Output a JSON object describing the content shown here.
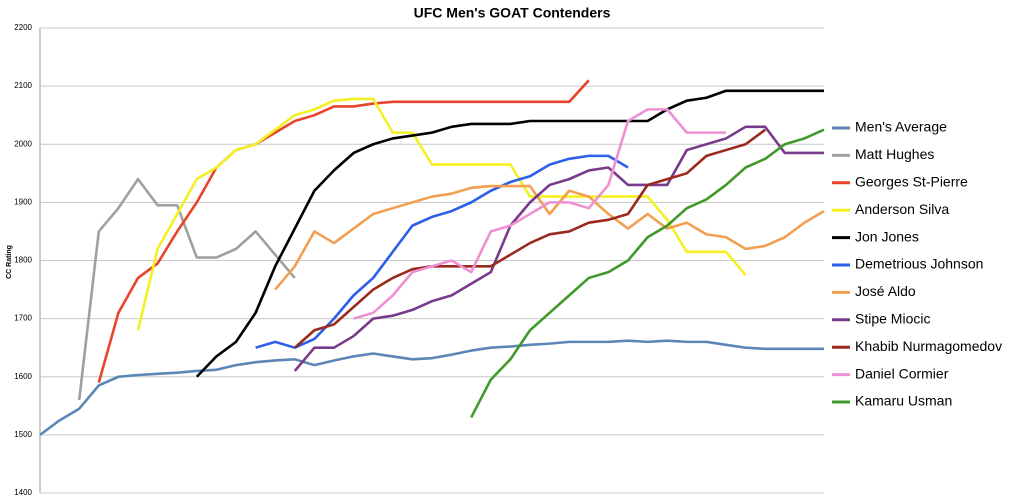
{
  "chart_data": {
    "type": "line",
    "title": "UFC Men's GOAT Contenders",
    "ylabel": "CC Rating",
    "categories": [
      null,
      null,
      null,
      null,
      null,
      null,
      null,
      null,
      null,
      null,
      null,
      null,
      null,
      null,
      null,
      null,
      null,
      null,
      null,
      null,
      null,
      null,
      null,
      null,
      null,
      null,
      null,
      null,
      null,
      null,
      null,
      null,
      null,
      null,
      null,
      null,
      null,
      null,
      null,
      null,
      null
    ],
    "ylim": [
      1400,
      2200
    ],
    "yticks": [
      1400,
      1500,
      1600,
      1700,
      1800,
      1900,
      2000,
      2100,
      2200
    ],
    "grid": true,
    "legend": "right",
    "series": [
      {
        "name": "Men's Average",
        "color": "#5b87b8",
        "values": [
          1500,
          1525,
          1545,
          1585,
          1600,
          1603,
          1605,
          1607,
          1610,
          1612,
          1620,
          1625,
          1628,
          1630,
          1620,
          1628,
          1635,
          1640,
          1635,
          1630,
          1632,
          1638,
          1645,
          1650,
          1652,
          1655,
          1657,
          1660,
          1660,
          1660,
          1662,
          1660,
          1662,
          1660,
          1660,
          1655,
          1650,
          1648,
          1648,
          1648,
          1648
        ]
      },
      {
        "name": "Matt Hughes",
        "color": "#a0a0a0",
        "values": [
          null,
          null,
          1560,
          1850,
          1890,
          1940,
          1895,
          1895,
          1805,
          1805,
          1820,
          1850,
          1810,
          1770,
          null,
          null,
          null,
          null,
          null,
          null,
          null,
          null,
          null,
          null,
          null,
          null,
          null,
          null,
          null,
          null,
          null,
          null,
          null,
          null,
          null,
          null,
          null,
          null,
          null,
          null,
          null
        ]
      },
      {
        "name": "Georges St-Pierre",
        "color": "#e8432b",
        "values": [
          null,
          null,
          null,
          1590,
          1710,
          1770,
          1795,
          1850,
          1900,
          1960,
          1990,
          2000,
          2020,
          2040,
          2050,
          2065,
          2065,
          2070,
          2073,
          2073,
          2073,
          2073,
          2073,
          2073,
          2073,
          2073,
          2073,
          2073,
          2110,
          null,
          null,
          null,
          null,
          null,
          null,
          null,
          null,
          null,
          null,
          null,
          null
        ]
      },
      {
        "name": "Anderson Silva",
        "color": "#f5f023",
        "values": [
          null,
          null,
          null,
          null,
          null,
          1680,
          1820,
          1880,
          1940,
          1960,
          1990,
          2000,
          2025,
          2050,
          2060,
          2075,
          2078,
          2078,
          2020,
          2020,
          1965,
          1965,
          1965,
          1965,
          1965,
          1910,
          1910,
          1910,
          1910,
          1910,
          1910,
          1910,
          1870,
          1815,
          1815,
          1815,
          1775,
          null,
          null,
          null,
          null
        ]
      },
      {
        "name": "Jon Jones",
        "color": "#000000",
        "values": [
          null,
          null,
          null,
          null,
          null,
          null,
          null,
          null,
          1600,
          1635,
          1660,
          1710,
          1790,
          1855,
          1920,
          1955,
          1985,
          2000,
          2010,
          2015,
          2020,
          2030,
          2035,
          2035,
          2035,
          2040,
          2040,
          2040,
          2040,
          2040,
          2040,
          2040,
          2060,
          2075,
          2080,
          2092,
          2092,
          2092,
          2092,
          2092,
          2092
        ]
      },
      {
        "name": "Demetrious Johnson",
        "color": "#2d5fe8",
        "values": [
          null,
          null,
          null,
          null,
          null,
          null,
          null,
          null,
          null,
          null,
          null,
          1650,
          1660,
          1650,
          1665,
          1700,
          1740,
          1770,
          1815,
          1860,
          1875,
          1885,
          1900,
          1920,
          1935,
          1945,
          1965,
          1975,
          1980,
          1980,
          1960,
          null,
          null,
          null,
          null,
          null,
          null,
          null,
          null,
          null,
          null
        ]
      },
      {
        "name": "José Aldo",
        "color": "#f0a050",
        "values": [
          null,
          null,
          null,
          null,
          null,
          null,
          null,
          null,
          null,
          null,
          null,
          null,
          1750,
          1790,
          1850,
          1830,
          1855,
          1880,
          1890,
          1900,
          1910,
          1915,
          1925,
          1928,
          1928,
          1928,
          1880,
          1920,
          1910,
          1880,
          1855,
          1880,
          1855,
          1865,
          1845,
          1840,
          1820,
          1825,
          1840,
          1865,
          1885
        ]
      },
      {
        "name": "Stipe Miocic",
        "color": "#7a3a8c",
        "values": [
          null,
          null,
          null,
          null,
          null,
          null,
          null,
          null,
          null,
          null,
          null,
          null,
          null,
          1610,
          1650,
          1650,
          1670,
          1700,
          1705,
          1715,
          1730,
          1740,
          1760,
          1780,
          1860,
          1900,
          1930,
          1940,
          1955,
          1960,
          1930,
          1930,
          1930,
          1990,
          2000,
          2010,
          2030,
          2030,
          1985,
          1985,
          1985
        ]
      },
      {
        "name": "Khabib Nurmagomedov",
        "color": "#9a2a1c",
        "values": [
          null,
          null,
          null,
          null,
          null,
          null,
          null,
          null,
          null,
          null,
          null,
          null,
          null,
          1650,
          1680,
          1690,
          1720,
          1750,
          1770,
          1785,
          1790,
          1790,
          1790,
          1790,
          1810,
          1830,
          1845,
          1850,
          1865,
          1870,
          1880,
          1930,
          1940,
          1950,
          1980,
          1990,
          2000,
          2025,
          null,
          null,
          null
        ]
      },
      {
        "name": "Daniel Cormier",
        "color": "#ee90d4",
        "values": [
          null,
          null,
          null,
          null,
          null,
          null,
          null,
          null,
          null,
          null,
          null,
          null,
          null,
          null,
          null,
          null,
          1700,
          1710,
          1740,
          1780,
          1790,
          1800,
          1780,
          1850,
          1860,
          1880,
          1900,
          1900,
          1890,
          1930,
          2040,
          2060,
          2060,
          2020,
          2020,
          2020,
          null,
          null,
          null,
          null,
          null
        ]
      },
      {
        "name": "Kamaru Usman",
        "color": "#3f9a2a",
        "values": [
          null,
          null,
          null,
          null,
          null,
          null,
          null,
          null,
          null,
          null,
          null,
          null,
          null,
          null,
          null,
          null,
          null,
          null,
          null,
          null,
          null,
          null,
          1530,
          1595,
          1630,
          1680,
          1710,
          1740,
          1770,
          1780,
          1800,
          1840,
          1860,
          1890,
          1905,
          1930,
          1960,
          1975,
          2000,
          2010,
          2025
        ]
      }
    ]
  }
}
